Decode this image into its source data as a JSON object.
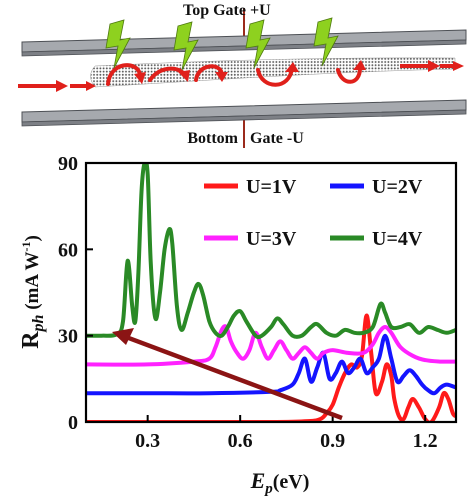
{
  "schematic": {
    "top_gate_label": "Top Gate  +U",
    "bottom_gate_label_left": "Bottom",
    "bottom_gate_label_right": "Gate  -U",
    "colors": {
      "gate": "#a6a9ae",
      "lightning": "#8ed11f",
      "electron_path": "#e0201b",
      "gate_wire": "#9b2a1c"
    },
    "icons": [
      "lightning-bolt-icon",
      "electron-path-arrow-icon",
      "nanotube-channel"
    ]
  },
  "chart_data": {
    "type": "line",
    "xlabel_main": "E",
    "xlabel_sub": "p",
    "xlabel_unit": "(eV)",
    "ylabel_main": "R",
    "ylabel_sub": "ph",
    "ylabel_unit": "  (mA W",
    "ylabel_exp": "-1",
    "ylabel_close": ")",
    "xlim": [
      0.1,
      1.3
    ],
    "ylim": [
      0,
      90
    ],
    "x_ticks": [
      0.3,
      0.6,
      0.9,
      1.2
    ],
    "x_tick_labels": [
      "0.3",
      "0.6",
      "0.9",
      "1.2"
    ],
    "y_ticks": [
      0,
      30,
      60,
      90
    ],
    "y_tick_labels": [
      "0",
      "30",
      "60",
      "90"
    ],
    "legend_placement": "top-right",
    "annotation": "arrow pointing toward lower photon energy as U increases",
    "series": [
      {
        "name": "U=1V",
        "color": "#ff1a1a",
        "points": [
          [
            0.1,
            0
          ],
          [
            0.3,
            0
          ],
          [
            0.5,
            0
          ],
          [
            0.7,
            0
          ],
          [
            0.82,
            0.3
          ],
          [
            0.86,
            1
          ],
          [
            0.88,
            3
          ],
          [
            0.9,
            6
          ],
          [
            0.92,
            12
          ],
          [
            0.94,
            17
          ],
          [
            0.96,
            20
          ],
          [
            0.98,
            19
          ],
          [
            0.995,
            23
          ],
          [
            1.01,
            37
          ],
          [
            1.025,
            24
          ],
          [
            1.04,
            10
          ],
          [
            1.06,
            14
          ],
          [
            1.075,
            20
          ],
          [
            1.09,
            16
          ],
          [
            1.1,
            8
          ],
          [
            1.115,
            2
          ],
          [
            1.13,
            1
          ],
          [
            1.145,
            5
          ],
          [
            1.16,
            8
          ],
          [
            1.18,
            5
          ],
          [
            1.2,
            1
          ],
          [
            1.22,
            0
          ],
          [
            1.245,
            5
          ],
          [
            1.26,
            10
          ],
          [
            1.275,
            8
          ],
          [
            1.29,
            3
          ],
          [
            1.3,
            2
          ]
        ]
      },
      {
        "name": "U=2V",
        "color": "#1414ff",
        "points": [
          [
            0.1,
            10
          ],
          [
            0.3,
            10
          ],
          [
            0.5,
            10
          ],
          [
            0.7,
            10.5
          ],
          [
            0.73,
            11
          ],
          [
            0.77,
            13
          ],
          [
            0.79,
            17
          ],
          [
            0.81,
            22
          ],
          [
            0.83,
            14
          ],
          [
            0.85,
            19
          ],
          [
            0.87,
            24
          ],
          [
            0.89,
            15
          ],
          [
            0.91,
            17
          ],
          [
            0.93,
            21
          ],
          [
            0.95,
            17
          ],
          [
            0.97,
            19
          ],
          [
            0.99,
            22
          ],
          [
            1.01,
            17
          ],
          [
            1.03,
            19
          ],
          [
            1.05,
            22
          ],
          [
            1.07,
            30
          ],
          [
            1.09,
            22
          ],
          [
            1.11,
            14
          ],
          [
            1.13,
            16
          ],
          [
            1.15,
            18
          ],
          [
            1.17,
            16
          ],
          [
            1.19,
            13
          ],
          [
            1.21,
            11
          ],
          [
            1.23,
            10
          ],
          [
            1.25,
            12
          ],
          [
            1.27,
            13
          ],
          [
            1.3,
            12
          ]
        ]
      },
      {
        "name": "U=3V",
        "color": "#ff22ff",
        "points": [
          [
            0.1,
            20
          ],
          [
            0.3,
            20
          ],
          [
            0.45,
            21
          ],
          [
            0.5,
            22
          ],
          [
            0.52,
            26
          ],
          [
            0.54,
            32
          ],
          [
            0.555,
            33
          ],
          [
            0.57,
            28
          ],
          [
            0.59,
            24
          ],
          [
            0.61,
            22
          ],
          [
            0.63,
            25
          ],
          [
            0.65,
            31
          ],
          [
            0.67,
            26
          ],
          [
            0.69,
            22
          ],
          [
            0.71,
            25
          ],
          [
            0.73,
            28
          ],
          [
            0.75,
            25
          ],
          [
            0.77,
            22
          ],
          [
            0.79,
            24
          ],
          [
            0.81,
            26
          ],
          [
            0.83,
            24
          ],
          [
            0.85,
            22
          ],
          [
            0.87,
            24
          ],
          [
            0.9,
            25
          ],
          [
            0.95,
            24
          ],
          [
            1.0,
            24
          ],
          [
            1.03,
            27
          ],
          [
            1.05,
            31
          ],
          [
            1.07,
            33
          ],
          [
            1.09,
            31
          ],
          [
            1.12,
            26
          ],
          [
            1.16,
            23
          ],
          [
            1.2,
            21.5
          ],
          [
            1.25,
            21
          ],
          [
            1.3,
            21
          ]
        ]
      },
      {
        "name": "U=4V",
        "color": "#2a8a26",
        "points": [
          [
            0.1,
            30
          ],
          [
            0.15,
            30
          ],
          [
            0.2,
            30.5
          ],
          [
            0.22,
            35
          ],
          [
            0.235,
            56
          ],
          [
            0.25,
            40
          ],
          [
            0.26,
            35
          ],
          [
            0.27,
            52
          ],
          [
            0.28,
            80
          ],
          [
            0.29,
            90
          ],
          [
            0.3,
            86
          ],
          [
            0.31,
            55
          ],
          [
            0.325,
            36
          ],
          [
            0.34,
            45
          ],
          [
            0.355,
            60
          ],
          [
            0.37,
            67
          ],
          [
            0.38,
            62
          ],
          [
            0.395,
            40
          ],
          [
            0.41,
            32
          ],
          [
            0.43,
            38
          ],
          [
            0.45,
            45
          ],
          [
            0.465,
            48
          ],
          [
            0.48,
            44
          ],
          [
            0.5,
            35
          ],
          [
            0.52,
            31
          ],
          [
            0.54,
            30
          ],
          [
            0.56,
            33
          ],
          [
            0.58,
            37
          ],
          [
            0.6,
            38.5
          ],
          [
            0.62,
            35
          ],
          [
            0.65,
            30
          ],
          [
            0.67,
            30
          ],
          [
            0.7,
            33
          ],
          [
            0.72,
            36
          ],
          [
            0.74,
            34
          ],
          [
            0.77,
            30
          ],
          [
            0.8,
            30
          ],
          [
            0.83,
            33
          ],
          [
            0.85,
            34
          ],
          [
            0.88,
            31
          ],
          [
            0.91,
            30
          ],
          [
            0.94,
            32
          ],
          [
            0.97,
            31
          ],
          [
            1.0,
            31
          ],
          [
            1.03,
            33
          ],
          [
            1.055,
            41
          ],
          [
            1.07,
            38
          ],
          [
            1.09,
            33
          ],
          [
            1.12,
            33
          ],
          [
            1.15,
            34
          ],
          [
            1.18,
            31
          ],
          [
            1.21,
            33
          ],
          [
            1.24,
            32
          ],
          [
            1.27,
            31
          ],
          [
            1.3,
            32
          ]
        ]
      }
    ]
  }
}
